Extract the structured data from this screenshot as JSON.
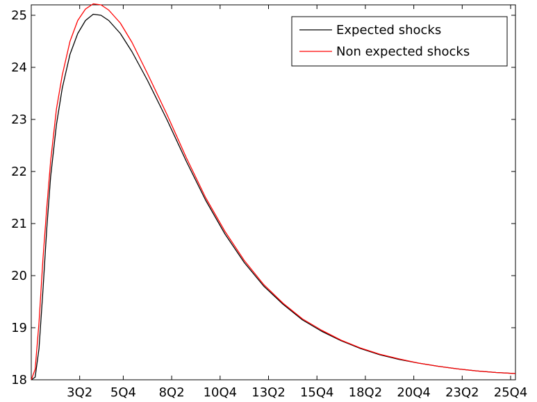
{
  "chart_data": {
    "type": "line",
    "title": "",
    "xlabel": "",
    "ylabel": "",
    "xlim": [
      1,
      26
    ],
    "ylim": [
      18,
      25.2
    ],
    "grid": false,
    "legend_position": "top-right",
    "x_ticks": [
      {
        "x": 3.5,
        "label": "3Q2"
      },
      {
        "x": 5.75,
        "label": "5Q4"
      },
      {
        "x": 8.25,
        "label": "8Q2"
      },
      {
        "x": 10.75,
        "label": "10Q4"
      },
      {
        "x": 13.25,
        "label": "13Q2"
      },
      {
        "x": 15.75,
        "label": "15Q4"
      },
      {
        "x": 18.25,
        "label": "18Q2"
      },
      {
        "x": 20.75,
        "label": "20Q4"
      },
      {
        "x": 23.25,
        "label": "23Q2"
      },
      {
        "x": 25.75,
        "label": "25Q4"
      }
    ],
    "y_ticks": [
      18,
      19,
      20,
      21,
      22,
      23,
      24,
      25
    ],
    "series": [
      {
        "name": "Expected shocks",
        "color": "#000000",
        "x": [
          1,
          1.2,
          1.4,
          1.6,
          1.8,
          2.0,
          2.3,
          2.6,
          3.0,
          3.4,
          3.8,
          4.2,
          4.6,
          5.0,
          5.6,
          6.2,
          7.0,
          8.0,
          9.0,
          10.0,
          11.0,
          12.0,
          13.0,
          14.0,
          15.0,
          16.0,
          17.0,
          18.0,
          19.0,
          20.0,
          21.0,
          22.0,
          23.0,
          24.0,
          25.0,
          26.0
        ],
        "y": [
          18.0,
          18.05,
          18.6,
          19.7,
          20.9,
          21.9,
          22.9,
          23.6,
          24.25,
          24.65,
          24.9,
          25.02,
          25.0,
          24.9,
          24.65,
          24.3,
          23.75,
          23.0,
          22.2,
          21.45,
          20.8,
          20.25,
          19.8,
          19.45,
          19.15,
          18.93,
          18.75,
          18.6,
          18.48,
          18.39,
          18.32,
          18.26,
          18.21,
          18.17,
          18.14,
          18.12
        ]
      },
      {
        "name": "Non expected shocks",
        "color": "#ff0000",
        "x": [
          1,
          1.2,
          1.4,
          1.6,
          1.8,
          2.0,
          2.3,
          2.6,
          3.0,
          3.4,
          3.8,
          4.2,
          4.6,
          5.0,
          5.6,
          6.2,
          7.0,
          8.0,
          9.0,
          10.0,
          11.0,
          12.0,
          13.0,
          14.0,
          15.0,
          16.0,
          17.0,
          18.0,
          19.0,
          20.0,
          21.0,
          22.0,
          23.0,
          24.0,
          25.0,
          26.0
        ],
        "y": [
          18.0,
          18.2,
          19.1,
          20.3,
          21.3,
          22.2,
          23.2,
          23.85,
          24.5,
          24.9,
          25.12,
          25.22,
          25.2,
          25.1,
          24.85,
          24.48,
          23.88,
          23.1,
          22.27,
          21.5,
          20.85,
          20.29,
          19.83,
          19.47,
          19.17,
          18.95,
          18.76,
          18.61,
          18.49,
          18.4,
          18.32,
          18.26,
          18.21,
          18.17,
          18.14,
          18.12
        ]
      }
    ]
  }
}
